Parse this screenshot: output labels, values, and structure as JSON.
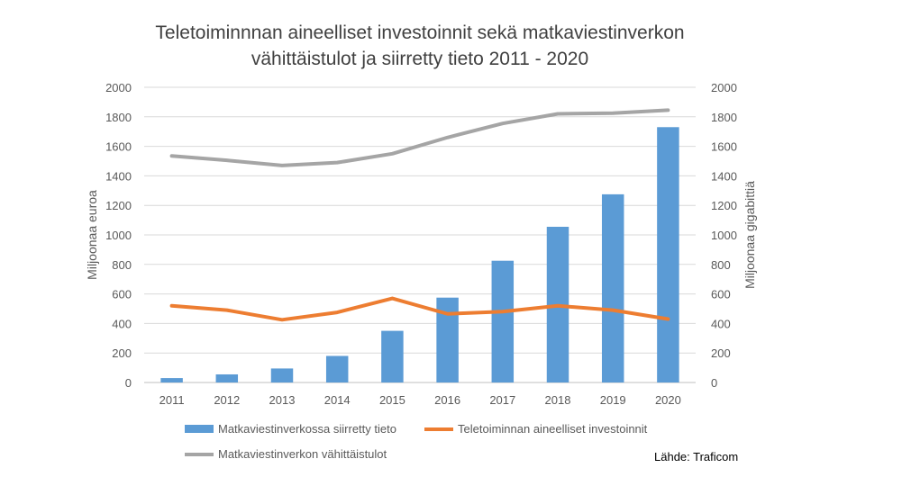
{
  "chart_data": {
    "type": "bar",
    "title_lines": [
      "Teletoiminnnan aineelliset investoinnit sekä matkaviestinverkon",
      "vähittäistulot ja siirretty tieto 2011 - 2020"
    ],
    "categories": [
      "2011",
      "2012",
      "2013",
      "2014",
      "2015",
      "2016",
      "2017",
      "2018",
      "2019",
      "2020"
    ],
    "ylabel": "Miljoonaa euroa",
    "y2label": "Miljoonaa gigabittiä",
    "ylim": [
      0,
      2000
    ],
    "y2lim": [
      0,
      2000
    ],
    "yticks": [
      "0",
      "200",
      "400",
      "600",
      "800",
      "1000",
      "1200",
      "1400",
      "1600",
      "1800",
      "2000"
    ],
    "y2ticks": [
      "0",
      "200",
      "400",
      "600",
      "800",
      "1000",
      "1200",
      "1400",
      "1600",
      "1800",
      "2000"
    ],
    "grid": true,
    "legend_position": "bottom",
    "series": [
      {
        "name": "Matkaviestinverkossa siirretty tieto",
        "kind": "bar",
        "axis": "right",
        "color": "#5b9bd5",
        "values": [
          30,
          55,
          95,
          180,
          350,
          575,
          825,
          1055,
          1275,
          1730
        ]
      },
      {
        "name": "Teletoiminnan aineelliset investoinnit",
        "kind": "line",
        "axis": "left",
        "color": "#ed7d31",
        "values": [
          520,
          490,
          425,
          475,
          570,
          465,
          480,
          520,
          490,
          430
        ]
      },
      {
        "name": "Matkaviestinverkon vähittäistulot",
        "kind": "line",
        "axis": "left",
        "color": "#a5a5a5",
        "values": [
          1535,
          1505,
          1470,
          1490,
          1550,
          1660,
          1755,
          1820,
          1825,
          1845
        ]
      }
    ],
    "source": "Lähde: Traficom"
  }
}
